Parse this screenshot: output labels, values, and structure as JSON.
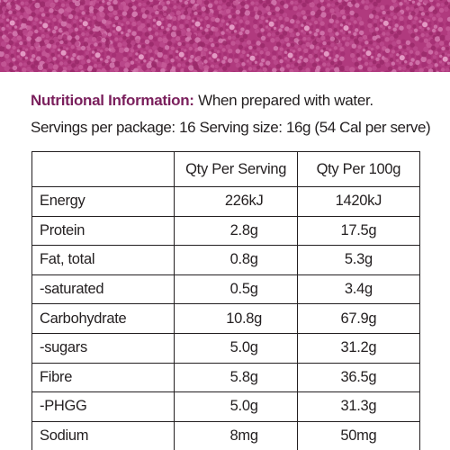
{
  "banner": {
    "color": "#b03a7e",
    "pattern": "floral-dot-pattern"
  },
  "heading": {
    "title": "Nutritional Information:",
    "note": "When prepared with water."
  },
  "serving_line": "Servings per package: 16 Serving size: 16g (54 Cal per serve)",
  "table": {
    "headers": [
      "",
      "Qty Per Serving",
      "Qty Per 100g"
    ],
    "rows": [
      {
        "label": "Energy",
        "per_serving": "226kJ",
        "per_100g": "1420kJ"
      },
      {
        "label": "Protein",
        "per_serving": "2.8g",
        "per_100g": "17.5g"
      },
      {
        "label": "Fat, total",
        "per_serving": "0.8g",
        "per_100g": "5.3g"
      },
      {
        "label": "-saturated",
        "per_serving": "0.5g",
        "per_100g": "3.4g"
      },
      {
        "label": "Carbohydrate",
        "per_serving": "10.8g",
        "per_100g": "67.9g"
      },
      {
        "label": "-sugars",
        "per_serving": "5.0g",
        "per_100g": "31.2g"
      },
      {
        "label": "Fibre",
        "per_serving": "5.8g",
        "per_100g": "36.5g"
      },
      {
        "label": "-PHGG",
        "per_serving": "5.0g",
        "per_100g": "31.3g"
      },
      {
        "label": "Sodium",
        "per_serving": "8mg",
        "per_100g": "50mg"
      }
    ]
  }
}
